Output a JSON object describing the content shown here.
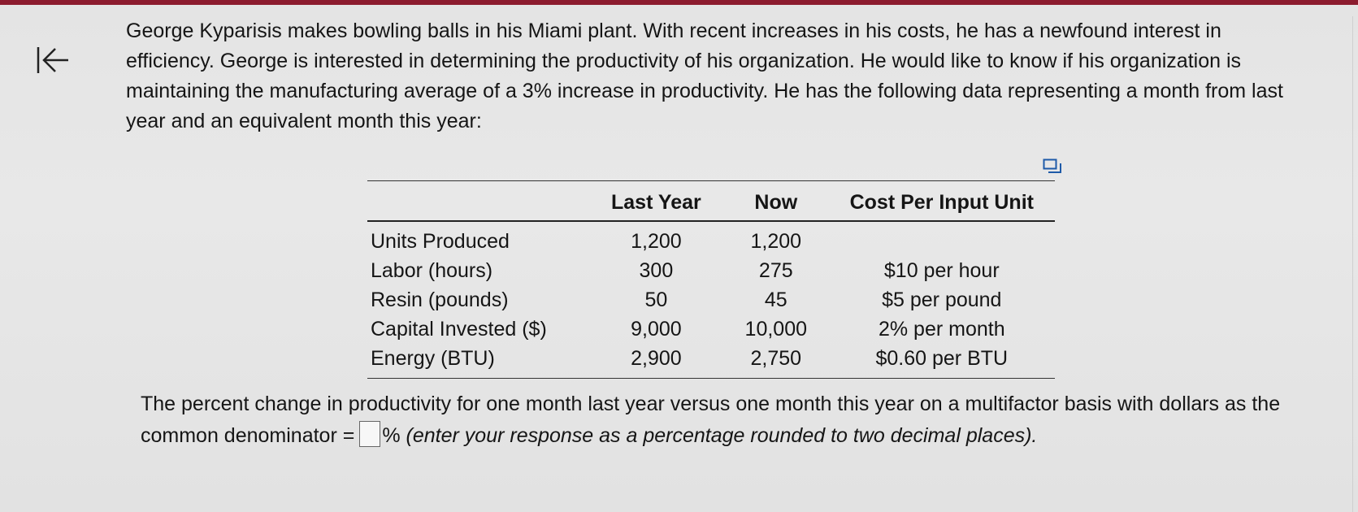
{
  "problem": {
    "text": "George Kyparisis makes bowling balls in his Miami plant. With recent increases in his costs, he has a newfound interest in efficiency. George is interested in determining the productivity of his organization. He would like to know if his organization is maintaining the manufacturing average of a 3% increase in productivity. He has the following data representing a month from last year and an equivalent month this year:"
  },
  "table": {
    "headers": {
      "label": "",
      "last_year": "Last Year",
      "now": "Now",
      "cost": "Cost Per Input Unit"
    },
    "rows": [
      {
        "label": "Units Produced",
        "last_year": "1,200",
        "now": "1,200",
        "cost": ""
      },
      {
        "label": "Labor (hours)",
        "last_year": "300",
        "now": "275",
        "cost": "$10 per hour"
      },
      {
        "label": "Resin (pounds)",
        "last_year": "50",
        "now": "45",
        "cost": "$5 per pound"
      },
      {
        "label": "Capital Invested ($)",
        "last_year": "9,000",
        "now": "10,000",
        "cost": "2% per month"
      },
      {
        "label": "Energy (BTU)",
        "last_year": "2,900",
        "now": "2,750",
        "cost": "$0.60 per BTU"
      }
    ]
  },
  "question": {
    "prefix": "The percent change in productivity for one month last year versus one month this year on a multifactor basis with dollars as the common denominator =",
    "answer_value": "",
    "suffix": "%",
    "instruction": "(enter your response as a percentage rounded to two decimal places)."
  },
  "icons": {
    "back": "back-to-start-icon",
    "expand": "expand-table-icon"
  },
  "colors": {
    "accent": "#8c1b2e",
    "background": "#e6e6e6"
  }
}
